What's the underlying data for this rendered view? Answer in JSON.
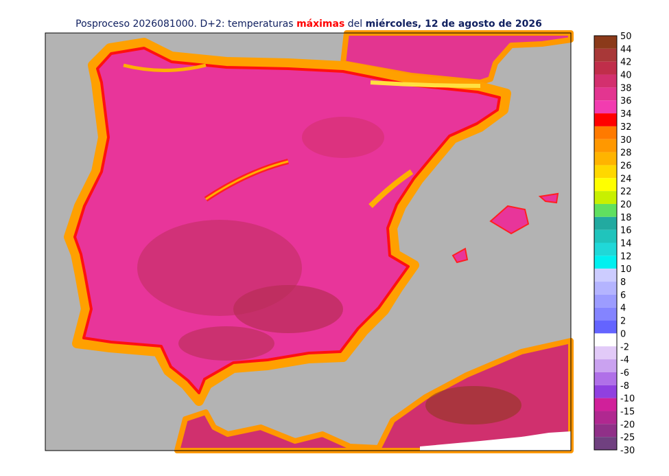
{
  "header": {
    "title_prefix": "Posproceso 2026081000. D+2: temperaturas",
    "title_highlight": "máximas",
    "title_middle": "del",
    "title_date": "miércoles, 12 de agosto de 2026"
  },
  "legend": {
    "labels": [
      50,
      44,
      42,
      40,
      38,
      36,
      34,
      32,
      30,
      28,
      26,
      24,
      22,
      20,
      18,
      16,
      14,
      12,
      10,
      8,
      6,
      4,
      2,
      0,
      -2,
      -4,
      -6,
      -8,
      -10,
      -15,
      -20,
      -25,
      -30
    ],
    "colors": [
      "#8b3a1a",
      "#a83838",
      "#c02e4a",
      "#d3306e",
      "#e33590",
      "#f23cb0",
      "#ff0000",
      "#ff7a00",
      "#ff9800",
      "#ffb400",
      "#ffd800",
      "#ffff00",
      "#c8f000",
      "#60e060",
      "#22aaa0",
      "#20c4bc",
      "#20d8d8",
      "#00f0f0",
      "#ccccff",
      "#b4b4ff",
      "#9c9cff",
      "#8484ff",
      "#6464ff",
      "#ffffff",
      "#e2caf8",
      "#caa2f0",
      "#b070e8",
      "#9040e0",
      "#d0209a",
      "#b02890",
      "#903088",
      "#704080"
    ]
  }
}
